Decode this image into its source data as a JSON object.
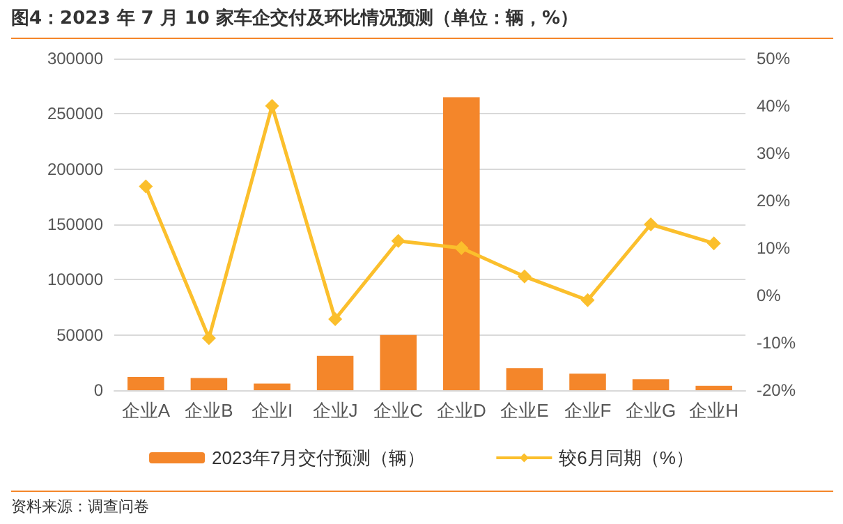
{
  "chart_data": {
    "type": "bar",
    "title": "图4：2023 年 7 月 10 家车企交付及环比情况预测（单位：辆，%）",
    "categories": [
      "企业A",
      "企业B",
      "企业I",
      "企业J",
      "企业C",
      "企业D",
      "企业E",
      "企业F",
      "企业G",
      "企业H"
    ],
    "series": [
      {
        "name": "2023年7月交付预测（辆）",
        "color": "#f4862a",
        "values": [
          12000,
          11000,
          6000,
          31000,
          50000,
          265000,
          20000,
          15000,
          10000,
          4000
        ]
      },
      {
        "name": "较6月同期（%）",
        "type": "line",
        "axis": "y2",
        "color": "#fbbf2c",
        "marker": "diamond",
        "values": [
          23,
          -9,
          40,
          -5,
          11.5,
          10,
          4,
          -1,
          15,
          11
        ]
      }
    ],
    "ylim": [
      0,
      300000
    ],
    "yticks": [
      0,
      50000,
      100000,
      150000,
      200000,
      250000,
      300000
    ],
    "y2lim": [
      -20,
      50
    ],
    "y2ticks": [
      {
        "value": -20,
        "label": "-20%"
      },
      {
        "value": -10,
        "label": "-10%"
      },
      {
        "value": 0,
        "label": "0%"
      },
      {
        "value": 10,
        "label": "10%"
      },
      {
        "value": 20,
        "label": "20%"
      },
      {
        "value": 30,
        "label": "30%"
      },
      {
        "value": 40,
        "label": "40%"
      },
      {
        "value": 50,
        "label": "50%"
      }
    ],
    "grid": "y",
    "legend": "bottom",
    "annotations": [
      "资料来源：调查问卷"
    ]
  }
}
